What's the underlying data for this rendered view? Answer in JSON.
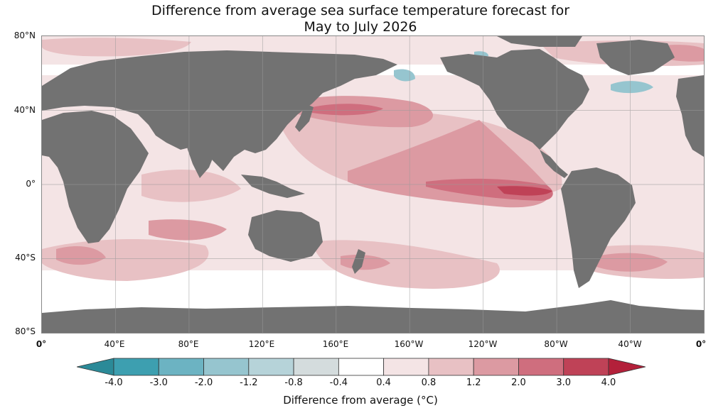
{
  "title": {
    "line1": "Difference from average sea surface temperature forecast for",
    "line2": "May to July 2026"
  },
  "map": {
    "projection": "equirectangular",
    "lat_labels": [
      "80°N",
      "40°N",
      "0°",
      "40°S",
      "80°S"
    ],
    "lon_labels": [
      "0°",
      "40°E",
      "80°E",
      "120°E",
      "160°E",
      "160°W",
      "120°W",
      "80°W",
      "40°W",
      "0°"
    ],
    "land_color": "#727272",
    "gridline_color": "#9a9a9a"
  },
  "colorbar": {
    "title": "Difference from average (°C)",
    "tick_labels": [
      "-4.0",
      "-3.0",
      "-2.0",
      "-1.2",
      "-0.8",
      "-0.4",
      "0.4",
      "0.8",
      "1.2",
      "2.0",
      "3.0",
      "4.0"
    ],
    "bins": [
      {
        "range": "-4.0 to -3.0",
        "color": "#3d9fb0"
      },
      {
        "range": "-3.0 to -2.0",
        "color": "#6cb3c2"
      },
      {
        "range": "-2.0 to -1.2",
        "color": "#96c5cf"
      },
      {
        "range": "-1.2 to -0.8",
        "color": "#b6d3d9"
      },
      {
        "range": "-0.8 to -0.4",
        "color": "#d4dcdd"
      },
      {
        "range": "-0.4 to 0.4",
        "color": "#ffffff"
      },
      {
        "range": "0.4 to 0.8",
        "color": "#f4e4e5"
      },
      {
        "range": "0.8 to 1.2",
        "color": "#e8c1c4"
      },
      {
        "range": "1.2 to 2.0",
        "color": "#dc9aa2"
      },
      {
        "range": "2.0 to 3.0",
        "color": "#cf6e7e"
      },
      {
        "range": "3.0 to 4.0",
        "color": "#bf4257"
      }
    ],
    "under_color": "#2b8a98",
    "over_color": "#b3203a"
  }
}
